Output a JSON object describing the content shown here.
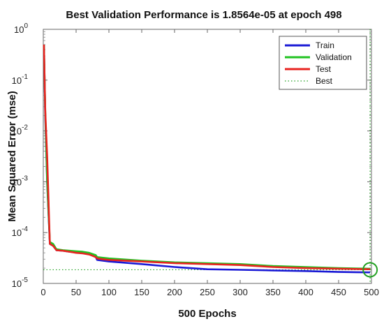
{
  "chart_data": {
    "type": "line",
    "title": "Best Validation Performance is 1.8564e-05 at epoch 498",
    "xlabel": "500 Epochs",
    "ylabel": "Mean Squared Error  (mse)",
    "xlim": [
      0,
      500
    ],
    "ylim": [
      1e-05,
      1
    ],
    "yscale": "log",
    "xticks": [
      0,
      50,
      100,
      150,
      200,
      250,
      300,
      350,
      400,
      450,
      500
    ],
    "yticks": [
      {
        "value": 1e-05,
        "base": "10",
        "exp": "-5"
      },
      {
        "value": 0.0001,
        "base": "10",
        "exp": "-4"
      },
      {
        "value": 0.001,
        "base": "10",
        "exp": "-3"
      },
      {
        "value": 0.01,
        "base": "10",
        "exp": "-2"
      },
      {
        "value": 0.1,
        "base": "10",
        "exp": "-1"
      },
      {
        "value": 1,
        "base": "10",
        "exp": "0"
      }
    ],
    "grid": false,
    "legend_position": "top-right",
    "series": [
      {
        "name": "Train",
        "color": "#1a1ad6",
        "x": [
          1,
          3,
          6,
          10,
          15,
          20,
          30,
          40,
          50,
          60,
          70,
          80,
          82,
          90,
          100,
          150,
          200,
          250,
          300,
          350,
          400,
          450,
          498
        ],
        "y": [
          0.5,
          0.02,
          0.0009,
          6e-05,
          5.5e-05,
          4.5e-05,
          4.4e-05,
          4.2e-05,
          4.1e-05,
          4e-05,
          3.8e-05,
          3.3e-05,
          2.9e-05,
          2.8e-05,
          2.7e-05,
          2.4e-05,
          2.1e-05,
          1.9e-05,
          1.85e-05,
          1.8e-05,
          1.75e-05,
          1.68e-05,
          1.65e-05
        ]
      },
      {
        "name": "Validation",
        "color": "#22c322",
        "x": [
          1,
          3,
          6,
          10,
          15,
          20,
          30,
          40,
          50,
          60,
          70,
          80,
          82,
          90,
          100,
          150,
          200,
          250,
          300,
          350,
          400,
          450,
          498
        ],
        "y": [
          0.5,
          0.025,
          0.001,
          6.5e-05,
          6e-05,
          4.7e-05,
          4.5e-05,
          4.4e-05,
          4.3e-05,
          4.2e-05,
          4e-05,
          3.6e-05,
          3.3e-05,
          3.2e-05,
          3.1e-05,
          2.8e-05,
          2.6e-05,
          2.5e-05,
          2.4e-05,
          2.2e-05,
          2.1e-05,
          2e-05,
          1.95e-05
        ]
      },
      {
        "name": "Test",
        "color": "#e8231f",
        "x": [
          1,
          3,
          6,
          10,
          15,
          20,
          30,
          40,
          50,
          60,
          70,
          80,
          82,
          90,
          100,
          150,
          200,
          250,
          300,
          350,
          400,
          450,
          498
        ],
        "y": [
          0.5,
          0.025,
          0.003,
          6e-05,
          5.5e-05,
          4.5e-05,
          4.4e-05,
          4.2e-05,
          4e-05,
          3.9e-05,
          3.7e-05,
          3.3e-05,
          3.1e-05,
          3e-05,
          2.9e-05,
          2.7e-05,
          2.5e-05,
          2.4e-05,
          2.3e-05,
          2.1e-05,
          2e-05,
          1.95e-05,
          1.9e-05
        ]
      }
    ],
    "best": {
      "name": "Best",
      "color": "#22a022",
      "epoch": 498,
      "value": 1.8564e-05
    }
  }
}
